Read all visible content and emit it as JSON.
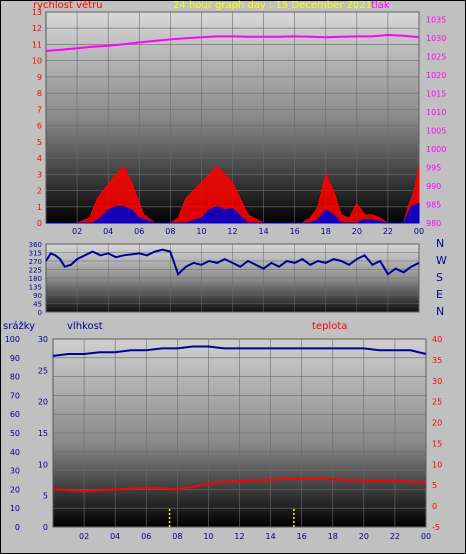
{
  "header": {
    "title": "24 hour graph day : 15 December 2021",
    "left_label": "rychlost větru",
    "right_label": "tlak"
  },
  "middle": {
    "compass": [
      "N",
      "W",
      "S",
      "E",
      "N"
    ]
  },
  "bottom": {
    "rain_label": "srážky",
    "humidity_label": "vlhkost",
    "temp_label": "teplota"
  },
  "colors": {
    "wind": "#ff0000",
    "gust": "#0000cc",
    "pressure": "#ff00ff",
    "direction": "#000099",
    "humidity": "#000099",
    "temperature": "#ff0000",
    "rain": "#ffff00"
  },
  "chart_data": [
    {
      "type": "line",
      "title": "24 hour graph day : 15 December 2021",
      "x_ticks": [
        "02",
        "04",
        "06",
        "08",
        "10",
        "12",
        "14",
        "16",
        "18",
        "20",
        "22",
        "00"
      ],
      "y_left_label": "rychlost větru",
      "y_left_ticks": [
        0,
        1,
        2,
        3,
        4,
        5,
        6,
        7,
        8,
        9,
        10,
        11,
        12,
        13
      ],
      "y_left_range": [
        0,
        13
      ],
      "y_right_label": "tlak",
      "y_right_ticks": [
        980,
        985,
        990,
        995,
        1000,
        1005,
        1010,
        1015,
        1020,
        1025,
        1030,
        1035
      ],
      "y_right_range": [
        980,
        1037
      ],
      "series": [
        {
          "name": "rychlost větru",
          "axis": "left",
          "x": [
            0,
            1,
            2,
            2.8,
            3.3,
            3.7,
            4.1,
            4.5,
            5,
            5.5,
            6.3,
            7,
            7.5,
            8,
            8.5,
            9,
            9.5,
            10,
            10.5,
            11,
            11.5,
            12,
            12.5,
            13,
            14,
            15,
            16,
            16.5,
            17,
            17.5,
            18,
            18.5,
            19,
            19.5,
            20,
            20.5,
            21,
            21.5,
            22,
            22.5,
            23,
            23.3,
            23.7,
            24
          ],
          "values": [
            0,
            0,
            0,
            0.3,
            1.5,
            2,
            2.5,
            3,
            3.5,
            2.5,
            0.5,
            0,
            0,
            0,
            0.3,
            1.5,
            2,
            2.5,
            3,
            3.5,
            3,
            2.5,
            1.5,
            0.5,
            0,
            0,
            0,
            0,
            0.3,
            1,
            3,
            2,
            0.5,
            0.3,
            1.2,
            0.5,
            0.5,
            0.3,
            0,
            0,
            0,
            1,
            2,
            3.5
          ]
        },
        {
          "name": "",
          "axis": "left",
          "x": [
            0,
            2,
            3,
            3.5,
            4,
            4.5,
            5,
            5.5,
            6,
            7,
            8,
            9,
            10,
            10.5,
            11,
            11.5,
            12,
            12.5,
            13,
            14,
            16,
            17,
            17.5,
            18,
            18.5,
            19,
            20,
            20.5,
            21,
            22,
            23,
            23.5,
            24
          ],
          "values": [
            0,
            0,
            0,
            0.3,
            0.8,
            1,
            1,
            0.8,
            0.3,
            0,
            0,
            0,
            0.3,
            0.8,
            1,
            0.8,
            0.9,
            0.4,
            0,
            0,
            0,
            0,
            0.2,
            0.8,
            0.5,
            0,
            0,
            0.2,
            0.2,
            0,
            0,
            1,
            1.2
          ]
        },
        {
          "name": "tlak",
          "axis": "right",
          "x": [
            0,
            1,
            2,
            3,
            4,
            5,
            6,
            7,
            8,
            9,
            10,
            11,
            12,
            13,
            14,
            15,
            16,
            17,
            18,
            19,
            20,
            21,
            22,
            23,
            24
          ],
          "values": [
            1026.5,
            1026.8,
            1027.2,
            1027.6,
            1027.9,
            1028.3,
            1028.8,
            1029.2,
            1029.6,
            1029.9,
            1030.2,
            1030.4,
            1030.4,
            1030.3,
            1030.3,
            1030.3,
            1030.4,
            1030.3,
            1030.2,
            1030.3,
            1030.4,
            1030.4,
            1030.8,
            1030.6,
            1030.2
          ]
        }
      ]
    },
    {
      "type": "line",
      "x_ticks": [
        "02",
        "04",
        "06",
        "08",
        "10",
        "12",
        "14",
        "16",
        "18",
        "20",
        "22",
        "00"
      ],
      "y_ticks": [
        0,
        45,
        90,
        135,
        180,
        225,
        270,
        315,
        360
      ],
      "y_range": [
        0,
        360
      ],
      "series": [
        {
          "name": "",
          "x": [
            0,
            0.3,
            0.6,
            0.9,
            1.2,
            1.6,
            2,
            2.5,
            3,
            3.5,
            4,
            4.5,
            5,
            5.5,
            6,
            6.5,
            7,
            7.5,
            8,
            8.5,
            9,
            9.5,
            10,
            10.5,
            11,
            11.5,
            12,
            12.5,
            13,
            13.5,
            14,
            14.5,
            15,
            15.5,
            16,
            16.5,
            17,
            17.5,
            18,
            18.5,
            19,
            19.5,
            20,
            20.5,
            21,
            21.5,
            22,
            22.5,
            23,
            23.5,
            24
          ],
          "values": [
            270,
            310,
            300,
            280,
            240,
            250,
            280,
            300,
            320,
            300,
            310,
            290,
            300,
            305,
            310,
            300,
            320,
            330,
            320,
            200,
            240,
            260,
            250,
            270,
            260,
            280,
            260,
            240,
            270,
            250,
            230,
            260,
            240,
            270,
            260,
            280,
            250,
            270,
            260,
            280,
            270,
            250,
            280,
            300,
            250,
            270,
            200,
            230,
            210,
            240,
            260
          ]
        }
      ]
    },
    {
      "type": "line",
      "x_ticks": [
        "02",
        "04",
        "06",
        "08",
        "10",
        "12",
        "14",
        "16",
        "18",
        "20",
        "22",
        "00"
      ],
      "y_left_label": "srážky",
      "y_left_ticks": [
        0,
        10,
        20,
        30,
        40,
        50,
        60,
        70,
        80,
        90,
        100
      ],
      "y_left2_label": "vlhkost",
      "y_left2_ticks": [
        0,
        5,
        10,
        15,
        20,
        25,
        30
      ],
      "y_right_label": "teplota",
      "y_right_ticks": [
        -5,
        0,
        5,
        10,
        15,
        20,
        25,
        30,
        35,
        40
      ],
      "series": [
        {
          "name": "vlhkost",
          "x": [
            0,
            1,
            2,
            3,
            4,
            5,
            6,
            7,
            8,
            9,
            10,
            11,
            12,
            13,
            14,
            15,
            16,
            17,
            18,
            19,
            20,
            21,
            22,
            23,
            24
          ],
          "values": [
            91,
            92,
            92,
            93,
            93,
            94,
            94,
            95,
            95,
            96,
            96,
            95,
            95,
            95,
            95,
            95,
            95,
            95,
            95,
            95,
            95,
            94,
            94,
            94,
            92
          ]
        },
        {
          "name": "teplota",
          "x": [
            0,
            1,
            2,
            3,
            4,
            5,
            6,
            7,
            8,
            9,
            10,
            11,
            12,
            13,
            14,
            15,
            16,
            17,
            18,
            19,
            20,
            21,
            22,
            23,
            24
          ],
          "values": [
            4,
            3.8,
            3.6,
            3.8,
            4,
            4.2,
            4.3,
            4.3,
            4,
            4.6,
            5.4,
            5.8,
            6,
            6.1,
            6.3,
            6.5,
            6.6,
            6.6,
            6.4,
            6.2,
            6.1,
            6,
            6.1,
            5.8,
            5.6
          ]
        },
        {
          "name": "srážky",
          "x": [
            7.5,
            15.5
          ],
          "values": [
            10,
            10
          ]
        }
      ]
    }
  ]
}
